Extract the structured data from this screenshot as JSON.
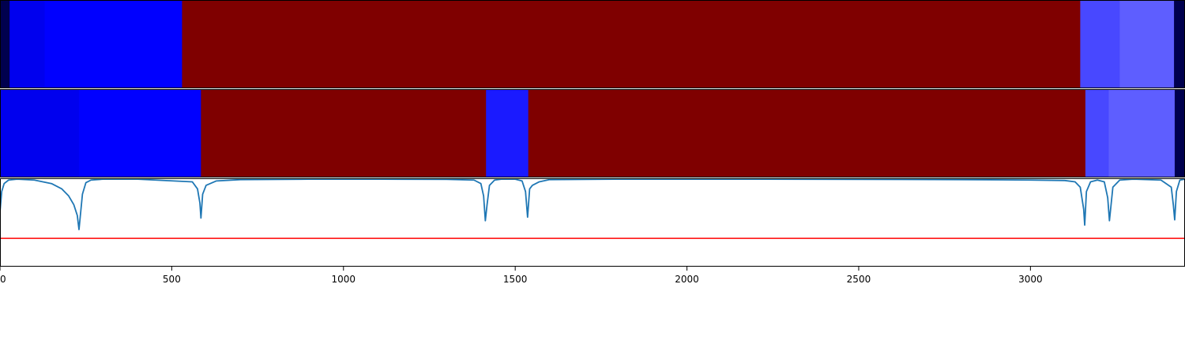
{
  "chart_data": [
    {
      "type": "heatmap",
      "xlim": [
        0,
        3450
      ],
      "segments": [
        {
          "start": 0,
          "end": 28,
          "color": "#00004e"
        },
        {
          "start": 28,
          "end": 130,
          "color": "#0000ee"
        },
        {
          "start": 130,
          "end": 530,
          "color": "#0000ff"
        },
        {
          "start": 530,
          "end": 3145,
          "color": "#7f0000"
        },
        {
          "start": 3145,
          "end": 3260,
          "color": "#4848ff"
        },
        {
          "start": 3260,
          "end": 3418,
          "color": "#5e5eff"
        },
        {
          "start": 3418,
          "end": 3450,
          "color": "#00004e"
        }
      ]
    },
    {
      "type": "heatmap",
      "xlim": [
        0,
        3450
      ],
      "segments": [
        {
          "start": 0,
          "end": 230,
          "color": "#0000ee"
        },
        {
          "start": 230,
          "end": 585,
          "color": "#0000ff"
        },
        {
          "start": 585,
          "end": 1415,
          "color": "#7f0000"
        },
        {
          "start": 1415,
          "end": 1538,
          "color": "#1a1aff"
        },
        {
          "start": 1538,
          "end": 3160,
          "color": "#7f0000"
        },
        {
          "start": 3160,
          "end": 3228,
          "color": "#4848ff"
        },
        {
          "start": 3228,
          "end": 3420,
          "color": "#5e5eff"
        },
        {
          "start": 3420,
          "end": 3450,
          "color": "#00004e"
        }
      ]
    },
    {
      "type": "line",
      "xlim": [
        0,
        3450
      ],
      "ylim": [
        -1.0,
        0.0
      ],
      "xticks": [
        0,
        500,
        1000,
        1500,
        2000,
        2500,
        3000
      ],
      "threshold": {
        "y": -0.68,
        "color": "#ff0000"
      },
      "series": [
        {
          "color": "#1f77b4",
          "x": [
            0,
            5,
            12,
            25,
            50,
            100,
            150,
            180,
            200,
            215,
            225,
            230,
            240,
            250,
            265,
            300,
            400,
            560,
            575,
            582,
            585,
            590,
            600,
            630,
            700,
            900,
            1100,
            1300,
            1380,
            1400,
            1408,
            1413,
            1418,
            1425,
            1440,
            1460,
            1500,
            1520,
            1530,
            1536,
            1542,
            1550,
            1570,
            1600,
            1800,
            2200,
            2800,
            3000,
            3100,
            3130,
            3145,
            3155,
            3158,
            3163,
            3175,
            3195,
            3215,
            3225,
            3230,
            3240,
            3260,
            3300,
            3380,
            3410,
            3416,
            3420,
            3425,
            3435,
            3450
          ],
          "y": [
            -0.38,
            -0.15,
            -0.06,
            -0.02,
            -0.01,
            -0.02,
            -0.06,
            -0.12,
            -0.2,
            -0.3,
            -0.42,
            -0.58,
            -0.18,
            -0.05,
            -0.02,
            -0.01,
            -0.01,
            -0.04,
            -0.12,
            -0.28,
            -0.45,
            -0.18,
            -0.08,
            -0.03,
            -0.015,
            -0.01,
            -0.01,
            -0.012,
            -0.02,
            -0.06,
            -0.2,
            -0.48,
            -0.3,
            -0.08,
            -0.02,
            -0.01,
            -0.01,
            -0.03,
            -0.15,
            -0.44,
            -0.12,
            -0.08,
            -0.04,
            -0.015,
            -0.01,
            -0.01,
            -0.015,
            -0.02,
            -0.025,
            -0.04,
            -0.1,
            -0.35,
            -0.53,
            -0.15,
            -0.04,
            -0.02,
            -0.04,
            -0.22,
            -0.48,
            -0.1,
            -0.02,
            -0.01,
            -0.02,
            -0.1,
            -0.3,
            -0.47,
            -0.15,
            -0.02,
            -0.01
          ]
        }
      ]
    }
  ]
}
